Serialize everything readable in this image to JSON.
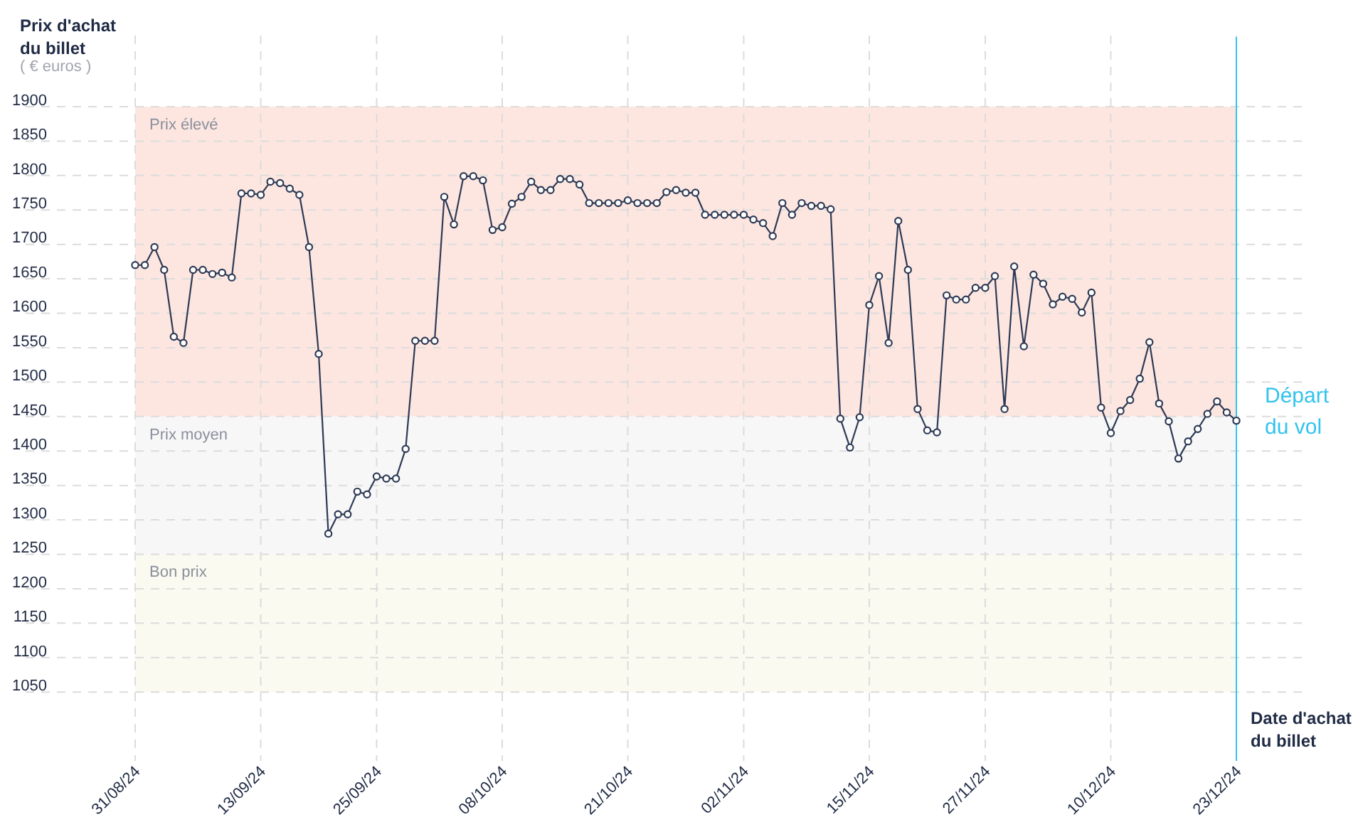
{
  "chart_data": {
    "type": "line",
    "ylabel": "Prix d'achat du billet",
    "xlabel": "Date d'achat du billet",
    "annotations": [
      "( € euros )"
    ],
    "x": [
      "--08-31",
      "--09-01",
      "--09-02",
      "--09-03",
      "--09-04",
      "--09-05",
      "--09-06",
      "--09-07",
      "--09-08",
      "--09-09",
      "--09-10",
      "--09-11",
      "--09-12",
      "--09-13",
      "--09-14",
      "--09-15",
      "--09-16",
      "--09-17",
      "--09-18",
      "--09-19",
      "--09-20",
      "--09-21",
      "--09-22",
      "--09-23",
      "--09-24",
      "--09-25",
      "--09-26",
      "--09-27",
      "--09-28",
      "--09-29",
      "--09-30",
      "--10-01",
      "--10-02",
      "--10-03",
      "--10-04",
      "--10-05",
      "--10-06",
      "--10-07",
      "--10-08",
      "--10-09",
      "--10-10",
      "--10-11",
      "--10-12",
      "--10-13",
      "--10-14",
      "--10-15",
      "--10-16",
      "--10-17",
      "--10-18",
      "--10-19",
      "--10-20",
      "--10-21",
      "--10-22",
      "--10-23",
      "--10-24",
      "--10-25",
      "--10-26",
      "--10-27",
      "--10-28",
      "--10-29",
      "--10-30",
      "--10-31",
      "--11-01",
      "--11-02",
      "--11-03",
      "--11-04",
      "--11-05",
      "--11-06",
      "--11-07",
      "--11-08",
      "--11-09",
      "--11-10",
      "--11-11",
      "--11-12",
      "--11-13",
      "--11-14",
      "--11-15",
      "--11-16",
      "--11-17",
      "--11-18",
      "--11-19",
      "--11-20",
      "--11-21",
      "--11-22",
      "--11-23",
      "--11-24",
      "--11-25",
      "--11-26",
      "--11-27",
      "--11-28",
      "--11-29",
      "--11-30",
      "--12-01",
      "--12-02",
      "--12-03",
      "--12-04",
      "--12-05",
      "--12-06",
      "--12-07",
      "--12-08",
      "--12-09",
      "--12-10",
      "--12-11",
      "--12-12",
      "--12-13",
      "--12-14",
      "--12-15",
      "--12-16",
      "--12-17",
      "--12-18",
      "--12-19",
      "--12-20",
      "--12-21",
      "--12-22",
      "--12-23"
    ],
    "series": [
      {
        "color": "#2d3a55",
        "values": [
          1670,
          1670,
          1696,
          1663,
          1566,
          1557,
          1663,
          1663,
          1657,
          1659,
          1652,
          1774,
          1774,
          1772,
          1791,
          1789,
          1781,
          1772,
          1696,
          1541,
          1280,
          1308,
          1308,
          1341,
          1337,
          1363,
          1360,
          1360,
          1403,
          1560,
          1560,
          1560,
          1769,
          1729,
          1799,
          1799,
          1793,
          1721,
          1725,
          1759,
          1769,
          1791,
          1779,
          1779,
          1795,
          1795,
          1787,
          1760,
          1760,
          1760,
          1760,
          1764,
          1760,
          1760,
          1760,
          1776,
          1779,
          1775,
          1775,
          1743,
          1743,
          1743,
          1743,
          1743,
          1736,
          1731,
          1712,
          1760,
          1743,
          1760,
          1756,
          1756,
          1751,
          1447,
          1405,
          1449,
          1612,
          1654,
          1557,
          1734,
          1663,
          1461,
          1430,
          1427,
          1626,
          1620,
          1620,
          1637,
          1637,
          1654,
          1461,
          1668,
          1552,
          1656,
          1643,
          1613,
          1624,
          1621,
          1601,
          1630,
          1463,
          1426,
          1458,
          1474,
          1505,
          1558,
          1469,
          1443,
          1389,
          1414,
          1432,
          1454,
          1472,
          1456,
          1444
        ]
      }
    ],
    "xlim": [
      "--08-31",
      "--12-23"
    ],
    "xticks": [
      {
        "value": "--08-31",
        "label": "31/08/24"
      },
      {
        "value": "--09-13",
        "label": "13/09/24"
      },
      {
        "value": "--09-25",
        "label": "25/09/24"
      },
      {
        "value": "--10-08",
        "label": "08/10/24"
      },
      {
        "value": "--10-21",
        "label": "21/10/24"
      },
      {
        "value": "--11-02",
        "label": "02/11/24"
      },
      {
        "value": "--11-15",
        "label": "15/11/24"
      },
      {
        "value": "--11-27",
        "label": "27/11/24"
      },
      {
        "value": "--12-10",
        "label": "10/12/24"
      },
      {
        "value": "--12-23",
        "label": "23/12/24"
      }
    ],
    "ylim": [
      950,
      1900
    ],
    "yticks": [
      1050,
      1100,
      1150,
      1200,
      1250,
      1300,
      1350,
      1400,
      1450,
      1500,
      1550,
      1600,
      1650,
      1700,
      1750,
      1800,
      1850,
      1900
    ],
    "grid": true,
    "marker": "circle",
    "line_style": "solid",
    "bands": [
      {
        "axis": "y",
        "from": 1450,
        "to": 1900,
        "label": "Prix élevé",
        "color": "#fde6e0"
      },
      {
        "axis": "y",
        "from": 1250,
        "to": 1450,
        "label": "Prix moyen",
        "color": "#f7f7f8"
      },
      {
        "axis": "y",
        "from": 1050,
        "to": 1250,
        "label": "Bon prix",
        "color": "#fafaf0"
      }
    ],
    "ref_lines": [
      {
        "axis": "x",
        "value": "--12-23",
        "label": "Départ du vol",
        "color": "#33c3ee"
      }
    ]
  }
}
